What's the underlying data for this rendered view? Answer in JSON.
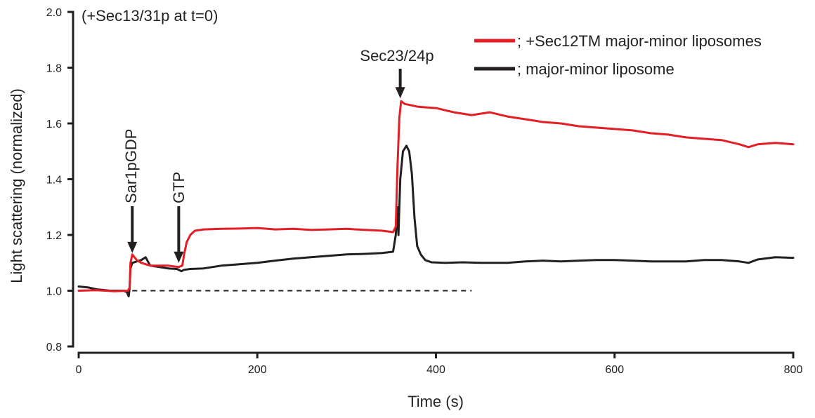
{
  "chart_data": {
    "type": "line",
    "title": "",
    "xlabel": "Time (s)",
    "ylabel": "Light scattering (normalized)",
    "xlim": [
      0,
      800
    ],
    "ylim": [
      0.8,
      2.0
    ],
    "x_ticks": [
      0,
      200,
      400,
      600,
      800
    ],
    "y_ticks": [
      0.8,
      1.0,
      1.2,
      1.4,
      1.6,
      1.8,
      2.0
    ],
    "x_tick_labels": [
      "0",
      "200",
      "400",
      "600",
      "800"
    ],
    "y_tick_labels": [
      "0.8",
      "1.0",
      "1.2",
      "1.4",
      "1.6",
      "1.8",
      "2.0"
    ],
    "grid": false,
    "legend_position": "top-right",
    "series": [
      {
        "name": "; +Sec12TM major-minor liposomes",
        "color": "#e31e24",
        "points": [
          [
            0,
            1.0
          ],
          [
            20,
            1.002
          ],
          [
            40,
            0.998
          ],
          [
            55,
            1.0
          ],
          [
            57,
            1.01
          ],
          [
            58,
            1.1
          ],
          [
            60,
            1.13
          ],
          [
            65,
            1.11
          ],
          [
            70,
            1.1
          ],
          [
            80,
            1.09
          ],
          [
            90,
            1.09
          ],
          [
            100,
            1.09
          ],
          [
            112,
            1.085
          ],
          [
            116,
            1.09
          ],
          [
            118,
            1.13
          ],
          [
            121,
            1.175
          ],
          [
            125,
            1.2
          ],
          [
            130,
            1.215
          ],
          [
            140,
            1.22
          ],
          [
            160,
            1.222
          ],
          [
            180,
            1.223
          ],
          [
            200,
            1.225
          ],
          [
            220,
            1.22
          ],
          [
            240,
            1.222
          ],
          [
            260,
            1.218
          ],
          [
            280,
            1.22
          ],
          [
            300,
            1.222
          ],
          [
            320,
            1.218
          ],
          [
            340,
            1.215
          ],
          [
            352,
            1.21
          ],
          [
            355,
            1.23
          ],
          [
            357,
            1.45
          ],
          [
            359,
            1.62
          ],
          [
            361,
            1.68
          ],
          [
            365,
            1.67
          ],
          [
            380,
            1.66
          ],
          [
            400,
            1.655
          ],
          [
            420,
            1.64
          ],
          [
            440,
            1.63
          ],
          [
            460,
            1.64
          ],
          [
            480,
            1.625
          ],
          [
            500,
            1.615
          ],
          [
            520,
            1.605
          ],
          [
            540,
            1.6
          ],
          [
            560,
            1.59
          ],
          [
            580,
            1.585
          ],
          [
            600,
            1.58
          ],
          [
            620,
            1.575
          ],
          [
            640,
            1.565
          ],
          [
            660,
            1.56
          ],
          [
            680,
            1.55
          ],
          [
            700,
            1.545
          ],
          [
            720,
            1.54
          ],
          [
            740,
            1.525
          ],
          [
            750,
            1.515
          ],
          [
            760,
            1.525
          ],
          [
            780,
            1.53
          ],
          [
            800,
            1.525
          ]
        ]
      },
      {
        "name": "; major-minor liposome",
        "color": "#231f20",
        "points": [
          [
            0,
            1.015
          ],
          [
            10,
            1.012
          ],
          [
            20,
            1.005
          ],
          [
            35,
            1.0
          ],
          [
            50,
            1.0
          ],
          [
            54,
            0.995
          ],
          [
            56,
            0.98
          ],
          [
            57,
            1.01
          ],
          [
            58,
            1.08
          ],
          [
            60,
            1.1
          ],
          [
            70,
            1.11
          ],
          [
            75,
            1.12
          ],
          [
            80,
            1.09
          ],
          [
            90,
            1.085
          ],
          [
            100,
            1.08
          ],
          [
            110,
            1.078
          ],
          [
            115,
            1.07
          ],
          [
            118,
            1.075
          ],
          [
            125,
            1.078
          ],
          [
            140,
            1.08
          ],
          [
            160,
            1.09
          ],
          [
            180,
            1.095
          ],
          [
            200,
            1.1
          ],
          [
            220,
            1.108
          ],
          [
            240,
            1.115
          ],
          [
            260,
            1.12
          ],
          [
            280,
            1.125
          ],
          [
            300,
            1.13
          ],
          [
            320,
            1.132
          ],
          [
            340,
            1.135
          ],
          [
            352,
            1.14
          ],
          [
            355,
            1.2
          ],
          [
            357,
            1.3
          ],
          [
            358,
            1.2
          ],
          [
            360,
            1.4
          ],
          [
            363,
            1.5
          ],
          [
            367,
            1.52
          ],
          [
            370,
            1.5
          ],
          [
            373,
            1.42
          ],
          [
            376,
            1.26
          ],
          [
            379,
            1.16
          ],
          [
            383,
            1.13
          ],
          [
            388,
            1.11
          ],
          [
            395,
            1.102
          ],
          [
            410,
            1.1
          ],
          [
            430,
            1.102
          ],
          [
            450,
            1.1
          ],
          [
            480,
            1.1
          ],
          [
            500,
            1.105
          ],
          [
            520,
            1.108
          ],
          [
            540,
            1.105
          ],
          [
            560,
            1.108
          ],
          [
            580,
            1.11
          ],
          [
            600,
            1.11
          ],
          [
            620,
            1.108
          ],
          [
            640,
            1.105
          ],
          [
            660,
            1.105
          ],
          [
            680,
            1.105
          ],
          [
            700,
            1.11
          ],
          [
            720,
            1.11
          ],
          [
            740,
            1.105
          ],
          [
            750,
            1.1
          ],
          [
            760,
            1.112
          ],
          [
            780,
            1.12
          ],
          [
            800,
            1.118
          ]
        ]
      }
    ],
    "baseline": {
      "style": "dashed",
      "y": 1.0,
      "x_start": 60,
      "x_end": 440
    },
    "annotations": [
      {
        "text": "(+Sec13/31p at t=0)",
        "kind": "corner"
      },
      {
        "text": "Sar1pGDP",
        "x": 60,
        "arrow_tip_y": 1.13,
        "kind": "vertical-arrow"
      },
      {
        "text": "GTP",
        "x": 112,
        "arrow_tip_y": 1.095,
        "kind": "vertical-arrow"
      },
      {
        "text": "Sec23/24p",
        "x": 360,
        "arrow_tip_y": 1.68,
        "kind": "horizontal-arrow"
      }
    ]
  }
}
